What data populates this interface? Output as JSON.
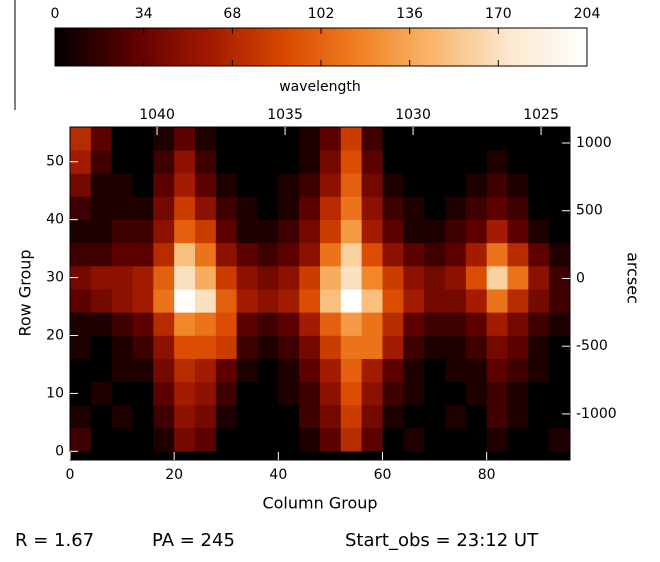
{
  "chart_data": {
    "type": "heatmap",
    "xlabel": "Column Group",
    "ylabel": "Row Group",
    "y2label": "arcsec",
    "x": [
      2,
      6,
      10,
      14,
      18,
      22,
      26,
      30,
      34,
      38,
      42,
      46,
      50,
      54,
      58,
      62,
      66,
      70,
      74,
      78,
      82,
      86,
      90,
      94
    ],
    "y": [
      2,
      6,
      10,
      14,
      18,
      22,
      26,
      30,
      34,
      38,
      42,
      46,
      50,
      54
    ],
    "z": [
      [
        20,
        0,
        0,
        0,
        10,
        40,
        30,
        0,
        0,
        0,
        0,
        10,
        30,
        70,
        30,
        0,
        10,
        0,
        0,
        0,
        10,
        0,
        0,
        10
      ],
      [
        10,
        0,
        10,
        0,
        20,
        50,
        40,
        10,
        0,
        0,
        0,
        20,
        40,
        80,
        40,
        10,
        0,
        0,
        10,
        0,
        20,
        10,
        0,
        0
      ],
      [
        0,
        10,
        0,
        0,
        30,
        60,
        50,
        20,
        0,
        0,
        10,
        20,
        50,
        90,
        50,
        20,
        10,
        0,
        0,
        10,
        20,
        10,
        0,
        0
      ],
      [
        0,
        0,
        10,
        10,
        40,
        70,
        60,
        30,
        10,
        0,
        10,
        30,
        60,
        100,
        60,
        30,
        10,
        0,
        10,
        10,
        30,
        20,
        10,
        0
      ],
      [
        10,
        0,
        10,
        20,
        50,
        90,
        90,
        80,
        20,
        10,
        20,
        40,
        80,
        110,
        110,
        60,
        20,
        10,
        10,
        20,
        40,
        30,
        10,
        0
      ],
      [
        10,
        10,
        20,
        30,
        70,
        120,
        110,
        90,
        30,
        20,
        30,
        60,
        100,
        130,
        110,
        70,
        30,
        20,
        20,
        30,
        60,
        40,
        20,
        10
      ],
      [
        30,
        40,
        50,
        60,
        110,
        200,
        170,
        100,
        60,
        50,
        60,
        90,
        150,
        204,
        150,
        90,
        60,
        40,
        40,
        60,
        110,
        70,
        40,
        20
      ],
      [
        40,
        50,
        50,
        60,
        100,
        170,
        140,
        80,
        50,
        40,
        50,
        80,
        140,
        170,
        120,
        80,
        50,
        40,
        50,
        90,
        160,
        110,
        50,
        20
      ],
      [
        20,
        20,
        30,
        30,
        70,
        150,
        110,
        50,
        30,
        20,
        30,
        50,
        110,
        160,
        90,
        50,
        30,
        20,
        30,
        60,
        110,
        70,
        30,
        10
      ],
      [
        10,
        10,
        20,
        20,
        50,
        100,
        80,
        30,
        10,
        10,
        20,
        40,
        80,
        130,
        60,
        30,
        10,
        10,
        20,
        30,
        60,
        30,
        10,
        0
      ],
      [
        20,
        10,
        10,
        10,
        40,
        80,
        50,
        20,
        10,
        0,
        10,
        30,
        70,
        110,
        50,
        20,
        10,
        0,
        10,
        20,
        30,
        20,
        0,
        0
      ],
      [
        40,
        10,
        10,
        0,
        30,
        60,
        30,
        10,
        0,
        0,
        10,
        20,
        50,
        100,
        40,
        10,
        0,
        0,
        0,
        10,
        20,
        10,
        0,
        0
      ],
      [
        60,
        20,
        0,
        0,
        20,
        50,
        20,
        0,
        0,
        0,
        0,
        10,
        40,
        90,
        30,
        0,
        0,
        0,
        0,
        0,
        10,
        0,
        0,
        0
      ],
      [
        70,
        30,
        0,
        0,
        10,
        30,
        10,
        0,
        0,
        0,
        0,
        10,
        30,
        80,
        20,
        0,
        0,
        0,
        0,
        0,
        0,
        0,
        0,
        0
      ]
    ],
    "xlim": [
      0,
      96
    ],
    "xticks": [
      0,
      20,
      40,
      60,
      80
    ],
    "ylim": [
      -1.5,
      56
    ],
    "yticks": [
      0,
      10,
      20,
      30,
      40,
      50
    ],
    "x2lim": [
      1043.4,
      1023.87
    ],
    "x2ticks": [
      1040,
      1035,
      1030,
      1025
    ],
    "y2lim": [
      -1340,
      1118
    ],
    "y2ticks": [
      -1000,
      -500,
      0,
      500,
      1000
    ],
    "colormap": [
      "#000000",
      "#5a0000",
      "#a01800",
      "#d84800",
      "#f08020",
      "#f8b870",
      "#fce8d0",
      "#ffffff"
    ],
    "colorbar": {
      "label": "wavelength",
      "lim": [
        0,
        204
      ],
      "ticks": [
        0,
        34,
        68,
        102,
        136,
        170,
        204
      ]
    },
    "footer": [
      "R = 1.67",
      "PA = 245",
      "Start_obs = 23:12 UT"
    ]
  }
}
